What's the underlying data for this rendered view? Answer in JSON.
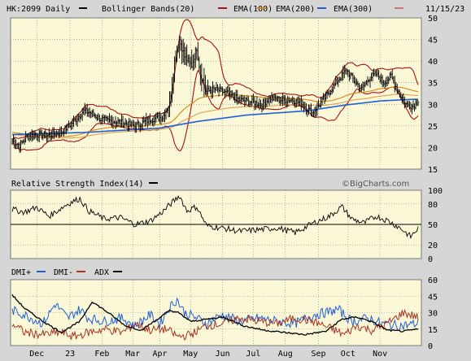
{
  "header": {
    "symbol": "HK:2099 Daily",
    "legend": [
      {
        "label": "Bollinger Bands(20)",
        "color": "#000000"
      },
      {
        "label": "EMA(100)",
        "color": "#aa1111"
      },
      {
        "label": "EMA(200)",
        "color": "#d4880f"
      },
      {
        "label": "EMA(300)",
        "color": "#1f5fd6"
      }
    ],
    "legend_extra_swatch_color": "#cc7777",
    "date": "11/15/23"
  },
  "watermark": "©BigCharts.com",
  "colors": {
    "plot_bg": "#fbf8d8",
    "grid": "#8a8a8a",
    "frame": "#d6d6d6",
    "price_bar": "#000000",
    "bollinger": "#aa1111",
    "ema100": "#d4880f",
    "ema200": "#e0a050",
    "ema300": "#1f5fd6",
    "dmi_plus": "#1f5fd6",
    "dmi_minus": "#aa3322",
    "adx": "#000000"
  },
  "x_labels": [
    "Dec",
    "23",
    "Feb",
    "Mar",
    "Apr",
    "May",
    "Jun",
    "Jul",
    "Aug",
    "Sep",
    "Oct",
    "Nov"
  ],
  "chart_data": [
    {
      "type": "ohlc",
      "title": "HK:2099 Daily",
      "ylim": [
        15,
        50
      ],
      "yticks": [
        15,
        20,
        25,
        30,
        35,
        40,
        45,
        50
      ],
      "x_months": [
        "Dec",
        "23",
        "Feb",
        "Mar",
        "Apr",
        "May",
        "Jun",
        "Jul",
        "Aug",
        "Sep",
        "Oct",
        "Nov"
      ],
      "close_anchors": [
        [
          0,
          21.5
        ],
        [
          6,
          20.5
        ],
        [
          12,
          22.5
        ],
        [
          20,
          23.0
        ],
        [
          30,
          22.8
        ],
        [
          40,
          23.5
        ],
        [
          50,
          26.0
        ],
        [
          58,
          28.5
        ],
        [
          64,
          28.0
        ],
        [
          72,
          26.5
        ],
        [
          85,
          26.0
        ],
        [
          100,
          25.0
        ],
        [
          112,
          26.5
        ],
        [
          122,
          27.0
        ],
        [
          128,
          30.0
        ],
        [
          132,
          40.0
        ],
        [
          136,
          45.0
        ],
        [
          140,
          41.0
        ],
        [
          146,
          39.0
        ],
        [
          150,
          43.0
        ],
        [
          153,
          37.0
        ],
        [
          158,
          33.0
        ],
        [
          165,
          33.5
        ],
        [
          175,
          32.5
        ],
        [
          185,
          31.0
        ],
        [
          195,
          30.5
        ],
        [
          203,
          30.0
        ],
        [
          210,
          31.5
        ],
        [
          218,
          31.0
        ],
        [
          228,
          31.0
        ],
        [
          236,
          30.0
        ],
        [
          244,
          28.0
        ],
        [
          250,
          30.0
        ],
        [
          258,
          33.0
        ],
        [
          266,
          36.0
        ],
        [
          272,
          38.0
        ],
        [
          278,
          35.5
        ],
        [
          284,
          33.5
        ],
        [
          290,
          36.0
        ],
        [
          296,
          37.0
        ],
        [
          302,
          35.0
        ],
        [
          308,
          36.5
        ],
        [
          314,
          33.0
        ],
        [
          320,
          30.0
        ],
        [
          326,
          29.5
        ],
        [
          330,
          31.0
        ]
      ],
      "series": [
        {
          "name": "Bollinger Bands(20)",
          "role": "upper_lower_bands"
        },
        {
          "name": "EMA(100)"
        },
        {
          "name": "EMA(200)"
        },
        {
          "name": "EMA(300)",
          "anchors": [
            [
              0,
              23.0
            ],
            [
              60,
              23.5
            ],
            [
              120,
              24.5
            ],
            [
              150,
              26.0
            ],
            [
              190,
              27.5
            ],
            [
              240,
              28.5
            ],
            [
              270,
              29.8
            ],
            [
              300,
              30.8
            ],
            [
              330,
              31.2
            ]
          ]
        }
      ]
    },
    {
      "type": "line",
      "title": "Relative Strength Index(14)",
      "ylim": [
        0,
        100
      ],
      "yticks": [
        0,
        20,
        50,
        80,
        100
      ],
      "reference_line": 50,
      "anchors": [
        [
          0,
          72
        ],
        [
          10,
          68
        ],
        [
          20,
          75
        ],
        [
          30,
          62
        ],
        [
          45,
          80
        ],
        [
          55,
          88
        ],
        [
          62,
          70
        ],
        [
          75,
          58
        ],
        [
          88,
          60
        ],
        [
          100,
          50
        ],
        [
          112,
          55
        ],
        [
          122,
          68
        ],
        [
          130,
          82
        ],
        [
          136,
          92
        ],
        [
          142,
          70
        ],
        [
          150,
          76
        ],
        [
          158,
          48
        ],
        [
          170,
          45
        ],
        [
          185,
          40
        ],
        [
          200,
          42
        ],
        [
          215,
          45
        ],
        [
          230,
          38
        ],
        [
          245,
          52
        ],
        [
          258,
          62
        ],
        [
          268,
          76
        ],
        [
          276,
          58
        ],
        [
          286,
          52
        ],
        [
          296,
          62
        ],
        [
          306,
          55
        ],
        [
          316,
          44
        ],
        [
          324,
          32
        ],
        [
          330,
          44
        ]
      ]
    },
    {
      "type": "line",
      "title": "DMI+ DMI- ADX",
      "ylim": [
        0,
        60
      ],
      "yticks": [
        0,
        15,
        30,
        45,
        60
      ],
      "series": [
        {
          "name": "DMI+",
          "anchors": [
            [
              0,
              32
            ],
            [
              10,
              28
            ],
            [
              25,
              20
            ],
            [
              35,
              38
            ],
            [
              45,
              25
            ],
            [
              55,
              33
            ],
            [
              62,
              25
            ],
            [
              75,
              22
            ],
            [
              90,
              25
            ],
            [
              100,
              18
            ],
            [
              112,
              28
            ],
            [
              120,
              20
            ],
            [
              128,
              35
            ],
            [
              134,
              42
            ],
            [
              140,
              30
            ],
            [
              150,
              25
            ],
            [
              158,
              20
            ],
            [
              170,
              28
            ],
            [
              185,
              22
            ],
            [
              200,
              25
            ],
            [
              215,
              22
            ],
            [
              230,
              20
            ],
            [
              245,
              28
            ],
            [
              255,
              30
            ],
            [
              265,
              33
            ],
            [
              276,
              22
            ],
            [
              290,
              25
            ],
            [
              300,
              20
            ],
            [
              315,
              18
            ],
            [
              330,
              20
            ]
          ]
        },
        {
          "name": "DMI-",
          "anchors": [
            [
              0,
              20
            ],
            [
              10,
              12
            ],
            [
              25,
              10
            ],
            [
              40,
              12
            ],
            [
              50,
              8
            ],
            [
              62,
              12
            ],
            [
              75,
              15
            ],
            [
              90,
              12
            ],
            [
              100,
              20
            ],
            [
              112,
              14
            ],
            [
              125,
              15
            ],
            [
              135,
              8
            ],
            [
              145,
              10
            ],
            [
              158,
              18
            ],
            [
              170,
              20
            ],
            [
              185,
              25
            ],
            [
              200,
              22
            ],
            [
              215,
              20
            ],
            [
              230,
              25
            ],
            [
              245,
              22
            ],
            [
              258,
              16
            ],
            [
              270,
              10
            ],
            [
              280,
              18
            ],
            [
              292,
              14
            ],
            [
              305,
              20
            ],
            [
              318,
              30
            ],
            [
              330,
              26
            ]
          ]
        },
        {
          "name": "ADX",
          "anchors": [
            [
              0,
              46
            ],
            [
              10,
              34
            ],
            [
              25,
              22
            ],
            [
              40,
              12
            ],
            [
              55,
              22
            ],
            [
              65,
              40
            ],
            [
              78,
              30
            ],
            [
              92,
              18
            ],
            [
              105,
              14
            ],
            [
              118,
              24
            ],
            [
              128,
              32
            ],
            [
              135,
              30
            ],
            [
              145,
              22
            ],
            [
              158,
              24
            ],
            [
              172,
              26
            ],
            [
              188,
              18
            ],
            [
              205,
              14
            ],
            [
              220,
              12
            ],
            [
              238,
              10
            ],
            [
              255,
              13
            ],
            [
              268,
              24
            ],
            [
              280,
              26
            ],
            [
              292,
              22
            ],
            [
              305,
              14
            ],
            [
              318,
              13
            ],
            [
              330,
              15
            ]
          ]
        }
      ]
    }
  ],
  "panels": {
    "rsi": {
      "label": "Relative Strength Index(14)",
      "legend_color": "#000000"
    },
    "dmi": {
      "legend": [
        {
          "label": "DMI+",
          "color": "#1f5fd6"
        },
        {
          "label": "DMI-",
          "color": "#aa3322"
        },
        {
          "label": "ADX",
          "color": "#000000"
        }
      ]
    }
  }
}
